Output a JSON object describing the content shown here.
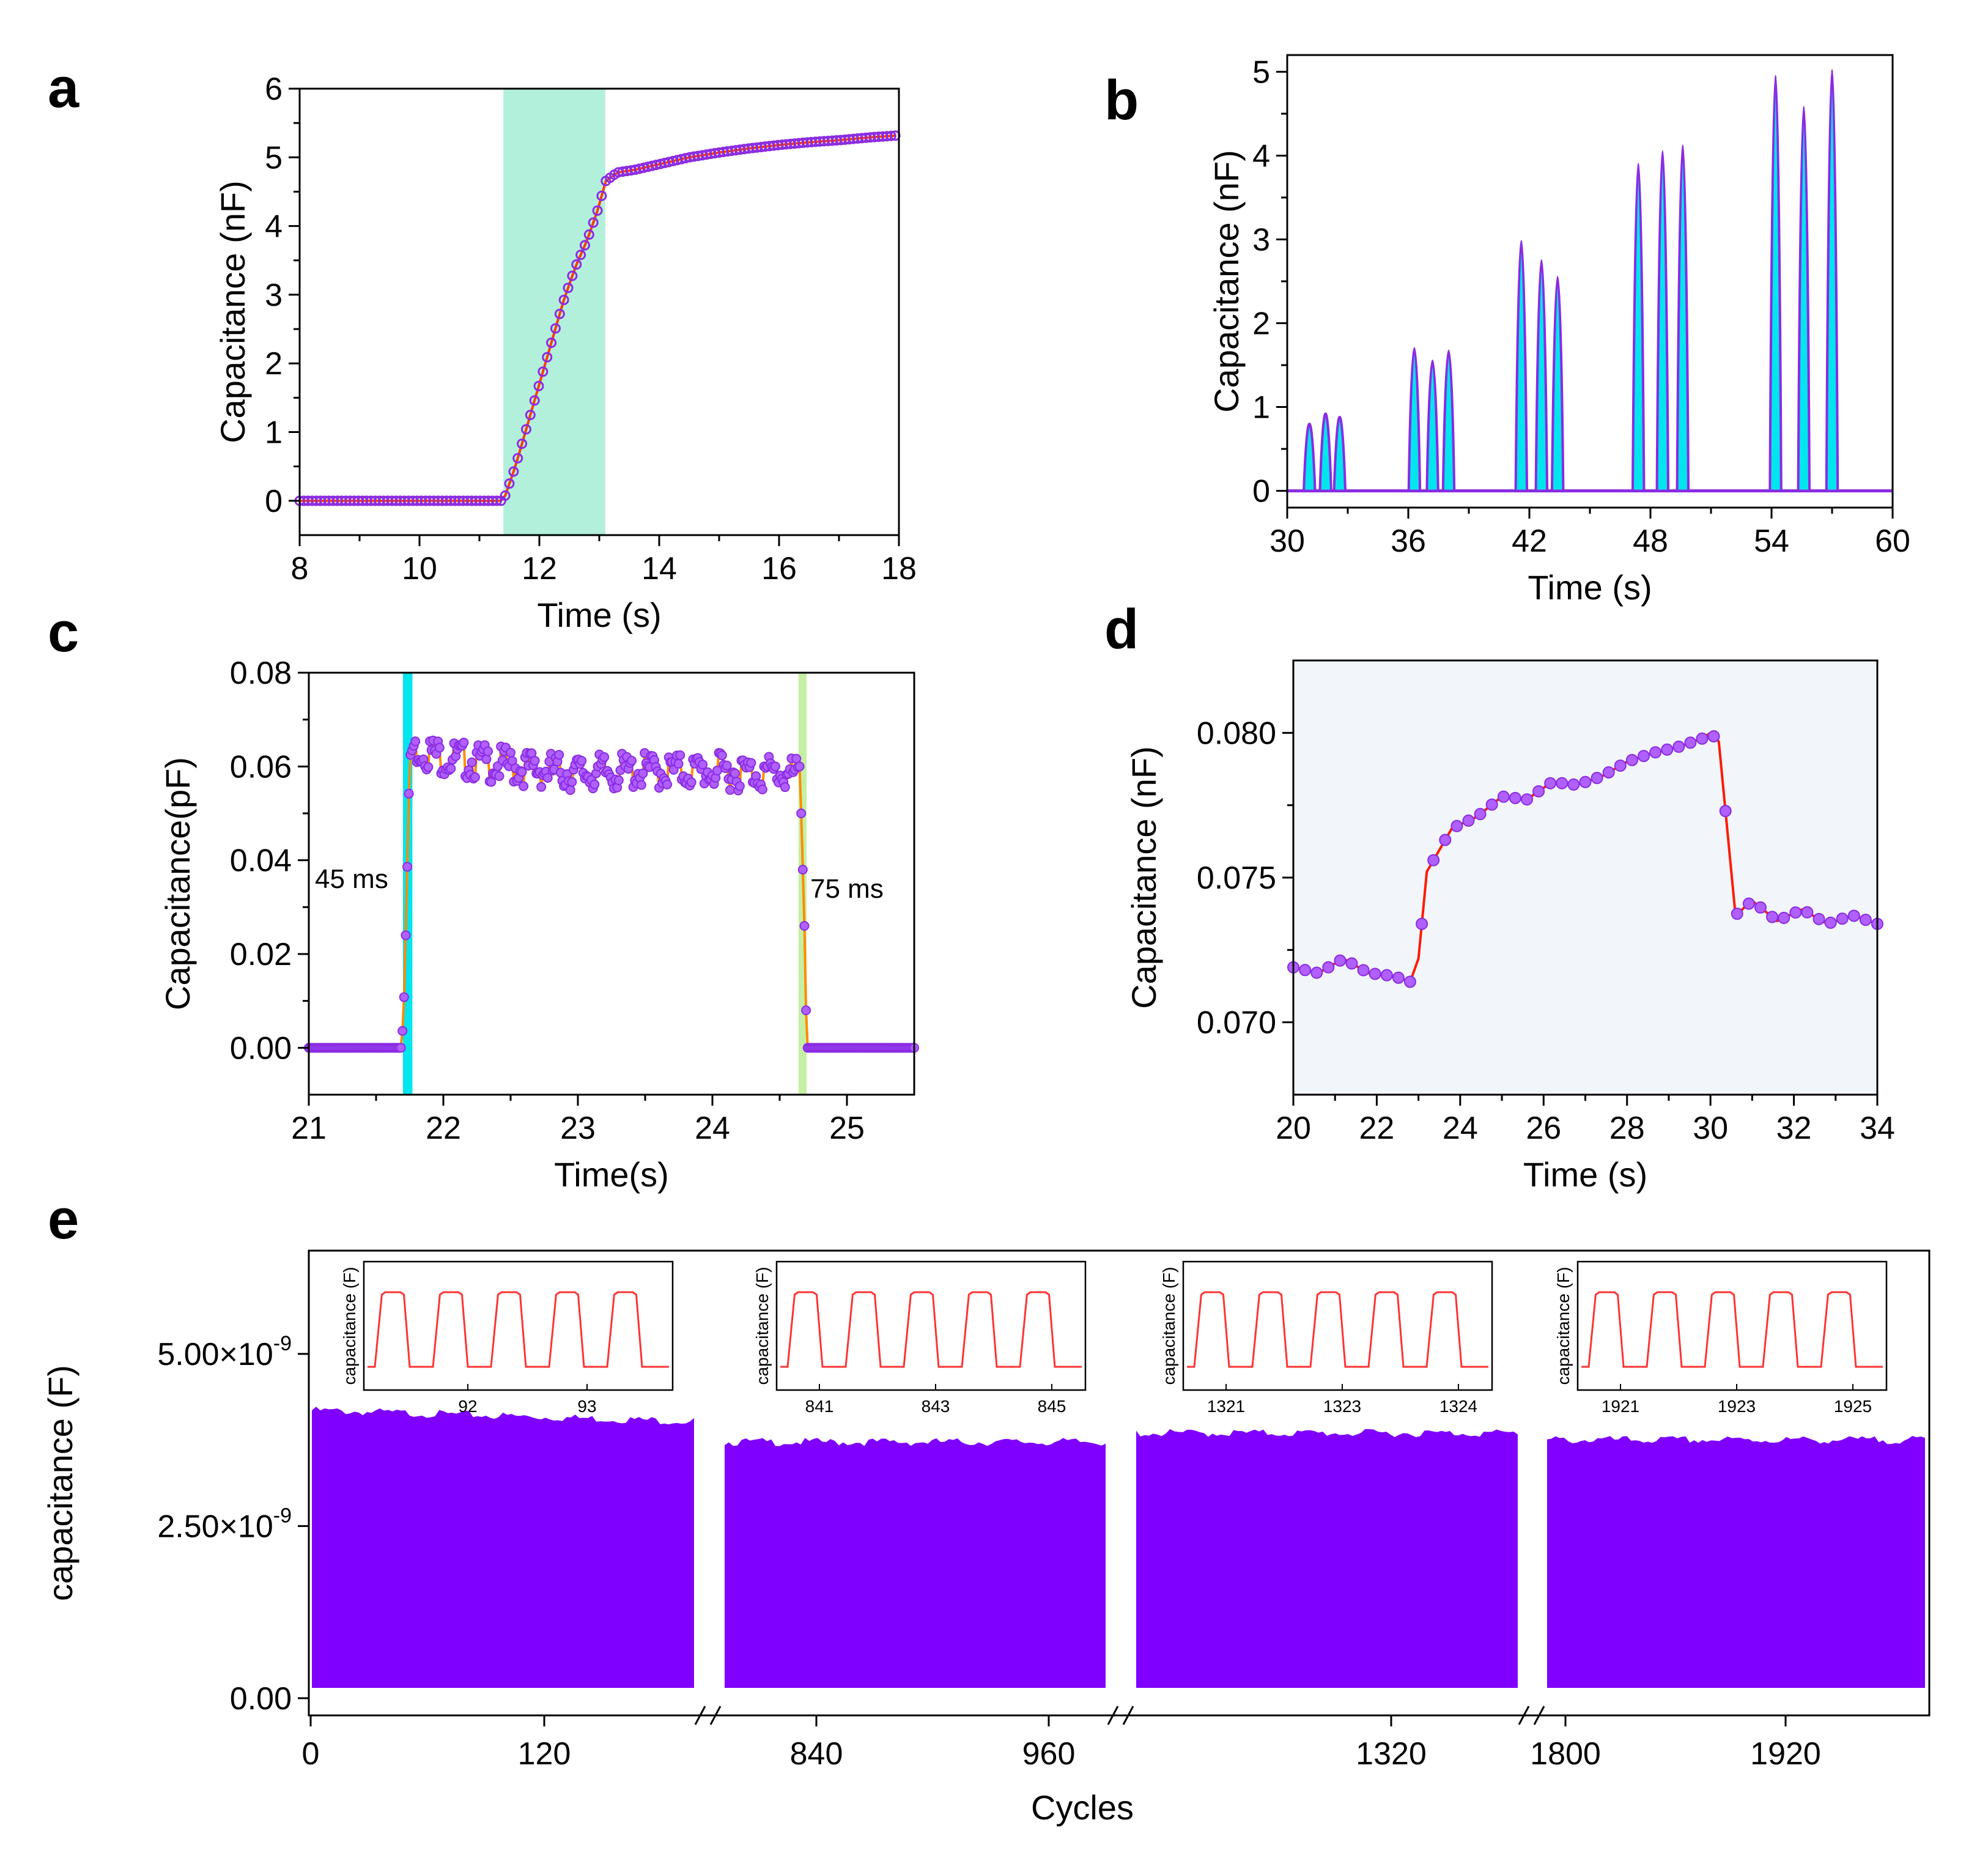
{
  "chart_data": [
    {
      "panel": "a",
      "type": "line",
      "xlabel": "Time (s)",
      "ylabel": "Capacitance (nF)",
      "xlim": [
        8,
        18
      ],
      "ylim": [
        -0.5,
        6
      ],
      "xticks": [
        8,
        10,
        12,
        14,
        16,
        18
      ],
      "yticks": [
        0,
        1,
        2,
        3,
        4,
        5,
        6
      ],
      "shaded_region": {
        "x": [
          11.4,
          13.1
        ],
        "color": "#b2f0dc"
      },
      "colors": {
        "line": "#ff3b00",
        "marker": "#8a2be2"
      },
      "x": [
        8,
        9,
        10,
        11,
        11.4,
        11.6,
        11.8,
        12.0,
        12.2,
        12.4,
        12.6,
        12.8,
        13.0,
        13.1,
        13.3,
        13.6,
        14.0,
        14.5,
        15.0,
        15.5,
        16.0,
        16.5,
        17.0,
        17.5,
        18.0
      ],
      "y": [
        0,
        0,
        0,
        0,
        0,
        0.5,
        1.1,
        1.7,
        2.3,
        2.9,
        3.4,
        3.8,
        4.3,
        4.65,
        4.78,
        4.82,
        4.9,
        5.0,
        5.07,
        5.13,
        5.18,
        5.22,
        5.25,
        5.29,
        5.32
      ]
    },
    {
      "panel": "b",
      "type": "area",
      "xlabel": "Time (s)",
      "ylabel": "Capacitance (nF)",
      "xlim": [
        30,
        60
      ],
      "ylim": [
        -0.2,
        5.2
      ],
      "xticks": [
        30,
        36,
        42,
        48,
        54,
        60
      ],
      "yticks": [
        0,
        1,
        2,
        3,
        4,
        5
      ],
      "colors": {
        "fill": "#00e5ee",
        "line": "#8a2be2"
      },
      "peaks": [
        {
          "t": 31.1,
          "h": 0.8
        },
        {
          "t": 31.9,
          "h": 0.92
        },
        {
          "t": 32.6,
          "h": 0.88
        },
        {
          "t": 36.3,
          "h": 1.7
        },
        {
          "t": 37.2,
          "h": 1.55
        },
        {
          "t": 38.0,
          "h": 1.67
        },
        {
          "t": 41.6,
          "h": 2.98
        },
        {
          "t": 42.6,
          "h": 2.75
        },
        {
          "t": 43.4,
          "h": 2.55
        },
        {
          "t": 47.4,
          "h": 3.9
        },
        {
          "t": 48.6,
          "h": 4.05
        },
        {
          "t": 49.6,
          "h": 4.12
        },
        {
          "t": 54.2,
          "h": 4.95
        },
        {
          "t": 55.6,
          "h": 4.58
        },
        {
          "t": 57.0,
          "h": 5.02
        }
      ]
    },
    {
      "panel": "c",
      "type": "line",
      "xlabel": "Time(s)",
      "ylabel": "Capacitance(pF)",
      "xlim": [
        21,
        25.5
      ],
      "ylim": [
        -0.01,
        0.08
      ],
      "xticks": [
        21,
        22,
        23,
        24,
        25
      ],
      "yticks": [
        0.0,
        0.02,
        0.04,
        0.06,
        0.08
      ],
      "annotations": [
        "45 ms",
        "75 ms"
      ],
      "bands": [
        {
          "x": [
            21.7,
            21.77
          ],
          "color": "#00e5ee"
        },
        {
          "x": [
            24.64,
            24.7
          ],
          "color": "#c5f0a4"
        }
      ],
      "colors": {
        "line": "#ff8c00",
        "marker": "#8a2be2"
      },
      "x": [
        21.0,
        21.69,
        21.71,
        21.73,
        21.75,
        21.8,
        22.0,
        22.5,
        23.0,
        23.5,
        24.0,
        24.5,
        24.65,
        24.67,
        24.69,
        24.7,
        25.5
      ],
      "y": [
        0,
        0,
        0.012,
        0.036,
        0.062,
        0.066,
        0.064,
        0.062,
        0.0605,
        0.061,
        0.061,
        0.0605,
        0.06,
        0.04,
        0.02,
        0,
        0
      ]
    },
    {
      "panel": "d",
      "type": "line",
      "xlabel": "Time (s)",
      "ylabel": "Capacitance (nF)",
      "xlim": [
        20,
        34
      ],
      "ylim": [
        0.0675,
        0.0825
      ],
      "xticks": [
        20,
        22,
        24,
        26,
        28,
        30,
        32,
        34
      ],
      "yticks": [
        0.07,
        0.075,
        0.08
      ],
      "colors": {
        "line": "#ff1a00",
        "marker": "#8a2be2",
        "background": "#f2f6fb"
      },
      "x": [
        20,
        20.6,
        21.2,
        21.8,
        22.4,
        22.8,
        23.0,
        23.2,
        23.8,
        24.4,
        25.0,
        25.6,
        26.2,
        26.8,
        27.4,
        28.0,
        28.6,
        29.2,
        29.8,
        30.0,
        30.2,
        30.6,
        31.0,
        31.6,
        32.2,
        32.8,
        33.4,
        34.0
      ],
      "y": [
        0.0719,
        0.0717,
        0.0722,
        0.0717,
        0.0716,
        0.0714,
        0.0722,
        0.0752,
        0.0767,
        0.0771,
        0.0778,
        0.0777,
        0.0783,
        0.0782,
        0.0785,
        0.079,
        0.0793,
        0.0795,
        0.0798,
        0.08,
        0.0797,
        0.0737,
        0.0742,
        0.0735,
        0.0739,
        0.0734,
        0.0737,
        0.0734
      ]
    },
    {
      "panel": "e",
      "type": "area",
      "xlabel": "Cycles",
      "ylabel": "capacitance (F)",
      "ylim": [
        -2.5e-10,
        6.5e-09
      ],
      "yticks": [
        "0.00",
        "2.50×10",
        "5.00×10"
      ],
      "ytick_exponent": "-9",
      "xtick_labels": [
        "0",
        "120",
        "840",
        "960",
        "1320",
        "1800",
        "1920"
      ],
      "segments": [
        {
          "range": [
            0,
            200
          ],
          "top": 4.05e-09,
          "bottom": 1.5e-10
        },
        {
          "range": [
            750,
            1010
          ],
          "top": 3.75e-09,
          "bottom": 1.5e-10
        },
        {
          "range": [
            1160,
            1760
          ],
          "top": 3.88e-09,
          "bottom": 1.5e-10
        },
        {
          "range": [
            1800,
            2020
          ],
          "top": 3.78e-09,
          "bottom": 1.5e-10
        }
      ],
      "colors": {
        "fill": "#7f00ff",
        "inset_line": "#ff3333"
      },
      "insets": [
        {
          "xticks": [
            "92",
            "93"
          ],
          "ylabel": "capacitance (F)"
        },
        {
          "xticks": [
            "841",
            "843",
            "845"
          ],
          "ylabel": "capacitance (F)"
        },
        {
          "xticks": [
            "1321",
            "1323",
            "1324"
          ],
          "ylabel": "capacitance (F)"
        },
        {
          "xticks": [
            "1921",
            "1923",
            "1925"
          ],
          "ylabel": "capacitance (F)"
        }
      ]
    }
  ],
  "panel_letters": [
    "a",
    "b",
    "c",
    "d",
    "e"
  ]
}
